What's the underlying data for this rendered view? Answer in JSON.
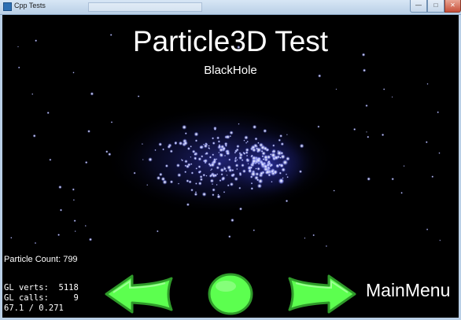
{
  "window": {
    "title": "Cpp Tests",
    "controls": {
      "minimize_icon": "minimize-icon",
      "maximize_icon": "maximize-icon",
      "close_icon": "close-icon"
    }
  },
  "scene": {
    "title": "Particle3D Test",
    "subtitle": "BlackHole",
    "particle_count": "Particle Count: 799"
  },
  "stats": {
    "gl_verts": "GL verts:  5118",
    "gl_calls": "GL calls:     9",
    "fps": "67.1 / 0.271"
  },
  "controls": {
    "back_icon": "left-arrow-icon",
    "restart_icon": "circle-icon",
    "next_icon": "right-arrow-icon",
    "main_menu_label": "MainMenu"
  },
  "colors": {
    "background": "#000000",
    "button_green": "#5cff4f",
    "button_outline": "#2f9a2a",
    "particle_core": "#d8ddff",
    "particle_glow": "#4048d8",
    "titlebar": "#b9cfe6"
  }
}
